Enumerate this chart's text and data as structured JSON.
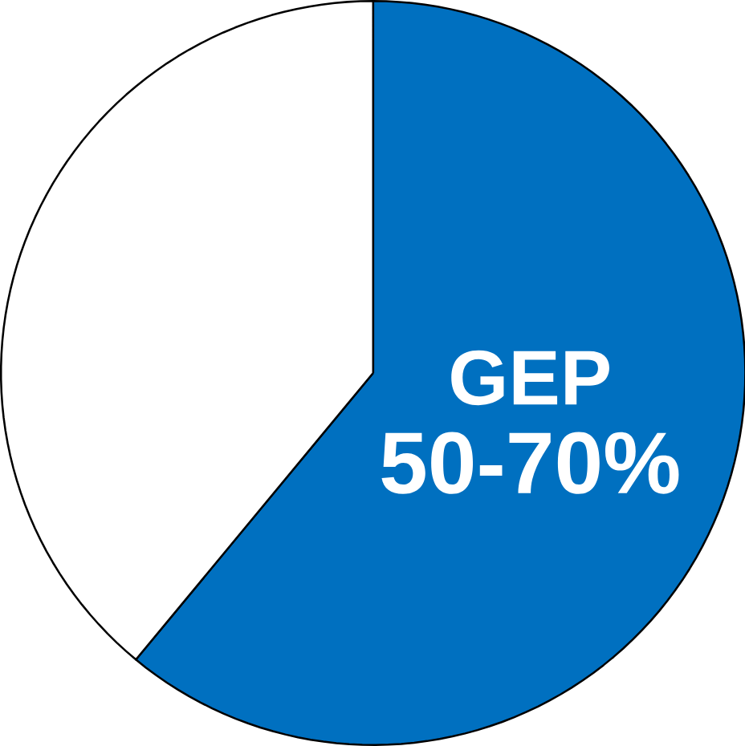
{
  "chart_data": {
    "type": "pie",
    "categories": [
      "GEP",
      null
    ],
    "values": [
      61,
      39
    ],
    "colors": [
      "#0070c0",
      "#ffffff"
    ],
    "annotations": [
      "50-70%"
    ]
  }
}
